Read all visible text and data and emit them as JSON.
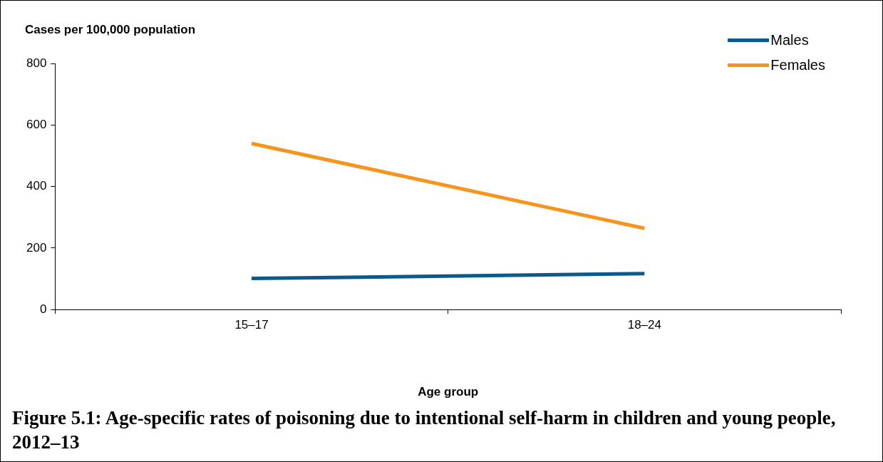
{
  "chart_data": {
    "type": "line",
    "title": "Figure 5.1: Age-specific rates of poisoning due to intentional self-harm in children and young people, 2012–13",
    "xlabel": "Age group",
    "ylabel": "Cases per 100,000 population",
    "categories": [
      "15–17",
      "18–24"
    ],
    "series": [
      {
        "name": "Males",
        "color": "#0b5a8a",
        "values": [
          101,
          117
        ]
      },
      {
        "name": "Females",
        "color": "#f7941d",
        "values": [
          540,
          264
        ]
      }
    ],
    "ylim": [
      0,
      800
    ],
    "yticks": [
      0,
      200,
      400,
      600,
      800
    ],
    "grid": false,
    "legend": "top right",
    "marker": "none",
    "line_style": "solid"
  }
}
